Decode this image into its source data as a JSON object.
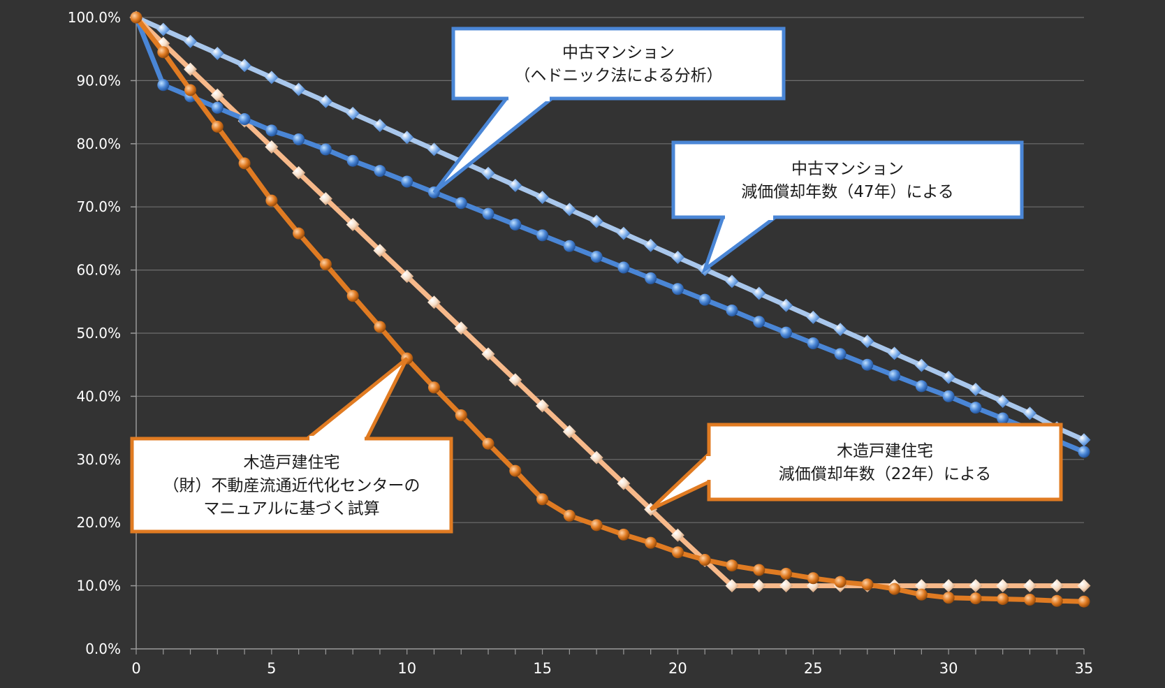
{
  "chart_data": {
    "type": "line",
    "x": [
      0,
      1,
      2,
      3,
      4,
      5,
      6,
      7,
      8,
      9,
      10,
      11,
      12,
      13,
      14,
      15,
      16,
      17,
      18,
      19,
      20,
      21,
      22,
      23,
      24,
      25,
      26,
      27,
      28,
      29,
      30,
      31,
      32,
      33,
      34,
      35
    ],
    "xlim": [
      0,
      35
    ],
    "ylim": [
      0,
      100
    ],
    "x_ticks": [
      "0",
      "5",
      "10",
      "15",
      "20",
      "25",
      "30",
      "35"
    ],
    "y_ticks": [
      "0.0%",
      "10.0%",
      "20.0%",
      "30.0%",
      "40.0%",
      "50.0%",
      "60.0%",
      "70.0%",
      "80.0%",
      "90.0%",
      "100.0%"
    ],
    "grid": true,
    "background": "#333333",
    "series": [
      {
        "key": "mansion_hedonic",
        "color": "#4a86d6",
        "marker": "circle",
        "values": [
          100,
          89.3,
          87.5,
          85.7,
          83.9,
          82.1,
          80.7,
          79.1,
          77.3,
          75.7,
          74.0,
          72.3,
          70.6,
          68.9,
          67.2,
          65.5,
          63.8,
          62.1,
          60.4,
          58.7,
          57.0,
          55.3,
          53.6,
          51.8,
          50.1,
          48.4,
          46.7,
          45.0,
          43.3,
          41.6,
          40.0,
          38.2,
          36.5,
          34.8,
          33.0,
          31.2
        ]
      },
      {
        "key": "mansion_depreciation",
        "color": "#a9c7ec",
        "marker": "diamond",
        "values": [
          100,
          98.1,
          96.2,
          94.3,
          92.4,
          90.5,
          88.6,
          86.7,
          84.8,
          82.9,
          81.0,
          79.1,
          77.2,
          75.3,
          73.4,
          71.5,
          69.6,
          67.7,
          65.8,
          63.9,
          62.0,
          60.1,
          58.2,
          56.3,
          54.4,
          52.5,
          50.6,
          48.7,
          46.8,
          44.9,
          43.0,
          41.1,
          39.2,
          37.3,
          35.0,
          33.1
        ]
      },
      {
        "key": "wooden_manual",
        "color": "#e07b22",
        "marker": "circle",
        "values": [
          100,
          94.5,
          88.5,
          82.7,
          76.9,
          71.0,
          65.8,
          60.9,
          55.9,
          51.0,
          46.0,
          41.4,
          37.0,
          32.5,
          28.2,
          23.7,
          21.1,
          19.6,
          18.1,
          16.8,
          15.3,
          14.1,
          13.2,
          12.5,
          11.9,
          11.2,
          10.6,
          10.2,
          9.5,
          8.6,
          8.1,
          8.0,
          7.9,
          7.8,
          7.6,
          7.5
        ]
      },
      {
        "key": "wooden_depreciation",
        "color": "#f7b98a",
        "marker": "diamond",
        "values": [
          100,
          95.9,
          91.8,
          87.7,
          83.6,
          79.5,
          75.4,
          71.3,
          67.2,
          63.1,
          59.0,
          54.9,
          50.8,
          46.7,
          42.6,
          38.5,
          34.4,
          30.3,
          26.2,
          22.1,
          18.0,
          14.0,
          10.0,
          10.0,
          10.0,
          10.0,
          10.0,
          10.0,
          10.0,
          10.0,
          10.0,
          10.0,
          10.0,
          10.0,
          10.0,
          10.0
        ]
      }
    ],
    "annotations": [
      {
        "key": "callout_mansion_hedonic",
        "lines": [
          "中古マンション",
          "（ヘドニック法による分析）"
        ],
        "border_color": "#4a86d6",
        "series": "mansion_hedonic"
      },
      {
        "key": "callout_mansion_depreciation",
        "lines": [
          "中古マンション",
          "減価償却年数（47年）による"
        ],
        "border_color": "#4a86d6",
        "series": "mansion_depreciation"
      },
      {
        "key": "callout_wooden_manual",
        "lines": [
          "木造戸建住宅",
          "（財）不動産流通近代化センターの",
          "マニュアルに基づく試算"
        ],
        "border_color": "#e07b22",
        "series": "wooden_manual"
      },
      {
        "key": "callout_wooden_depreciation",
        "lines": [
          "木造戸建住宅",
          "減価償却年数（22年）による"
        ],
        "border_color": "#e07b22",
        "series": "wooden_depreciation"
      }
    ]
  }
}
